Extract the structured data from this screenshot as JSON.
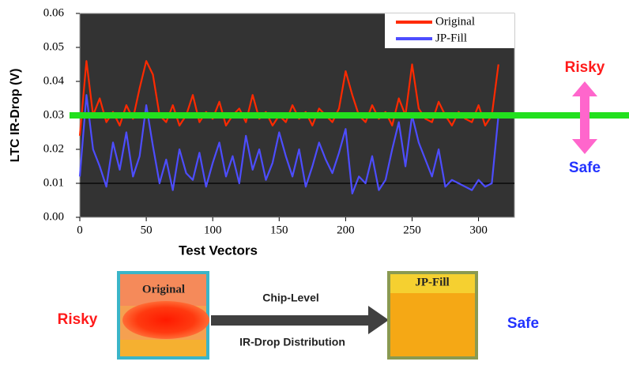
{
  "chart_data": {
    "type": "line",
    "x_label": "Test Vectors",
    "y_label": "LTC  IR-Drop (V)",
    "x": [
      0,
      5,
      10,
      15,
      20,
      25,
      30,
      35,
      40,
      45,
      50,
      55,
      60,
      65,
      70,
      75,
      80,
      85,
      90,
      95,
      100,
      105,
      110,
      115,
      120,
      125,
      130,
      135,
      140,
      145,
      150,
      155,
      160,
      165,
      170,
      175,
      180,
      185,
      190,
      195,
      200,
      205,
      210,
      215,
      220,
      225,
      230,
      235,
      240,
      245,
      250,
      255,
      260,
      265,
      270,
      275,
      280,
      285,
      290,
      295,
      300,
      305,
      310,
      315
    ],
    "series": [
      {
        "name": "Original",
        "color": "#ff2a00",
        "values": [
          0.024,
          0.046,
          0.03,
          0.035,
          0.028,
          0.031,
          0.027,
          0.033,
          0.029,
          0.038,
          0.046,
          0.042,
          0.03,
          0.028,
          0.033,
          0.027,
          0.03,
          0.036,
          0.028,
          0.031,
          0.029,
          0.034,
          0.027,
          0.03,
          0.032,
          0.028,
          0.036,
          0.029,
          0.031,
          0.027,
          0.03,
          0.028,
          0.033,
          0.029,
          0.031,
          0.027,
          0.032,
          0.03,
          0.028,
          0.032,
          0.043,
          0.036,
          0.03,
          0.028,
          0.033,
          0.029,
          0.031,
          0.027,
          0.035,
          0.03,
          0.045,
          0.032,
          0.029,
          0.028,
          0.034,
          0.03,
          0.027,
          0.031,
          0.029,
          0.028,
          0.033,
          0.027,
          0.03,
          0.045
        ]
      },
      {
        "name": "JP-Fill",
        "color": "#4d4dff",
        "values": [
          0.012,
          0.036,
          0.02,
          0.015,
          0.009,
          0.022,
          0.014,
          0.025,
          0.012,
          0.018,
          0.033,
          0.021,
          0.01,
          0.017,
          0.008,
          0.02,
          0.013,
          0.011,
          0.019,
          0.009,
          0.016,
          0.022,
          0.012,
          0.018,
          0.01,
          0.024,
          0.014,
          0.02,
          0.011,
          0.016,
          0.025,
          0.018,
          0.012,
          0.02,
          0.009,
          0.015,
          0.022,
          0.017,
          0.013,
          0.019,
          0.026,
          0.007,
          0.012,
          0.01,
          0.018,
          0.008,
          0.011,
          0.02,
          0.028,
          0.015,
          0.03,
          0.022,
          0.017,
          0.012,
          0.02,
          0.009,
          0.011,
          0.01,
          0.009,
          0.008,
          0.011,
          0.009,
          0.01,
          0.03
        ]
      }
    ],
    "xlim": [
      0,
      327
    ],
    "xticks": [
      0,
      50,
      100,
      150,
      200,
      250,
      300
    ],
    "ylim": [
      0,
      0.06
    ],
    "yticks": [
      {
        "value": 0,
        "label": "0.00"
      },
      0.01,
      0.02,
      0.03,
      0.04,
      0.05,
      0.06
    ],
    "reference_line": 0.01,
    "threshold": 0.03,
    "threshold_color": "#22e01e",
    "legend": "top-right"
  },
  "annotations": {
    "upper": "Risky",
    "lower": "Safe"
  },
  "diagram": {
    "left_label": "Risky",
    "right_label": "Safe",
    "left_chip": "Original",
    "right_chip": "JP-Fill",
    "arrow_top": "Chip-Level",
    "arrow_bottom": "IR-Drop Distribution"
  }
}
